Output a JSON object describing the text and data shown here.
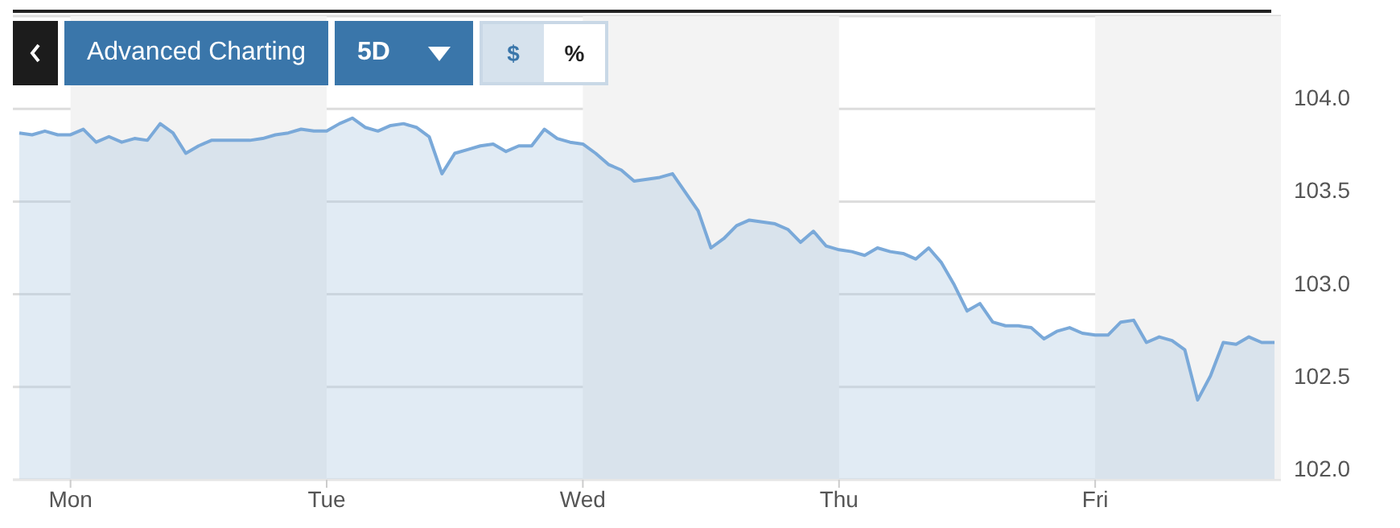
{
  "chart_data": {
    "type": "area",
    "annotations": [
      "Advanced Charting",
      "5D",
      "$",
      "%"
    ],
    "categories": [
      null,
      null,
      null,
      null,
      "Mon",
      null,
      null,
      null,
      null,
      null,
      null,
      null,
      null,
      null,
      null,
      null,
      null,
      null,
      null,
      null,
      null,
      null,
      null,
      null,
      "Tue",
      null,
      null,
      null,
      null,
      null,
      null,
      null,
      null,
      null,
      null,
      null,
      null,
      null,
      null,
      null,
      null,
      null,
      null,
      null,
      "Wed",
      null,
      null,
      null,
      null,
      null,
      null,
      null,
      null,
      null,
      null,
      null,
      null,
      null,
      null,
      null,
      null,
      null,
      null,
      null,
      "Thu",
      null,
      null,
      null,
      null,
      null,
      null,
      null,
      null,
      null,
      null,
      null,
      null,
      null,
      null,
      null,
      null,
      null,
      null,
      null,
      "Fri",
      null,
      null,
      null,
      null,
      null,
      null,
      null,
      null,
      null,
      null,
      null,
      null,
      null,
      null
    ],
    "series": [
      {
        "color": "#7aa9d9",
        "values": [
          103.87,
          103.86,
          103.88,
          103.86,
          103.86,
          103.89,
          103.82,
          103.85,
          103.82,
          103.84,
          103.83,
          103.92,
          103.87,
          103.76,
          103.8,
          103.83,
          103.83,
          103.83,
          103.83,
          103.84,
          103.86,
          103.87,
          103.89,
          103.88,
          103.88,
          103.92,
          103.95,
          103.9,
          103.88,
          103.91,
          103.92,
          103.9,
          103.85,
          103.65,
          103.76,
          103.78,
          103.8,
          103.81,
          103.77,
          103.8,
          103.8,
          103.89,
          103.84,
          103.82,
          103.81,
          103.76,
          103.7,
          103.67,
          103.61,
          103.62,
          103.63,
          103.65,
          103.55,
          103.45,
          103.25,
          103.3,
          103.37,
          103.4,
          103.39,
          103.38,
          103.35,
          103.28,
          103.34,
          103.26,
          103.24,
          103.23,
          103.21,
          103.25,
          103.23,
          103.22,
          103.19,
          103.25,
          103.17,
          103.05,
          102.91,
          102.95,
          102.85,
          102.83,
          102.83,
          102.82,
          102.76,
          102.8,
          102.82,
          102.79,
          102.78,
          102.78,
          102.85,
          102.86,
          102.74,
          102.77,
          102.75,
          102.7,
          102.43,
          102.56,
          102.74,
          102.73,
          102.77,
          102.74,
          102.74
        ]
      }
    ],
    "ylim": [
      102.0,
      104.5
    ],
    "yticks": [
      {
        "value": 102.0,
        "label": "102.0"
      },
      {
        "value": 102.5,
        "label": "102.5"
      },
      {
        "value": 103.0,
        "label": "103.0"
      },
      {
        "value": 103.5,
        "label": "103.5"
      },
      {
        "value": 104.0,
        "label": "104.0"
      }
    ],
    "grid": "y"
  }
}
